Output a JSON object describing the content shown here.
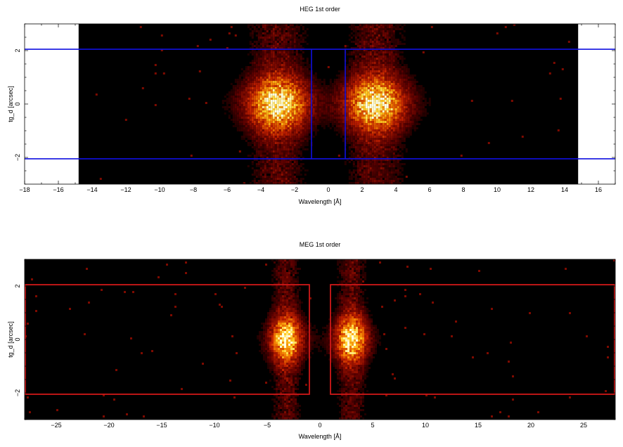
{
  "chart_data": [
    {
      "type": "heatmap",
      "title": "HEG 1st order",
      "xlabel": "Wavelength [Å]",
      "ylabel": "tg_d [arcsec]",
      "xlim": [
        -18,
        17
      ],
      "ylim": [
        -3,
        3
      ],
      "data_extent_x": [
        -14.8,
        14.8
      ],
      "x_major_ticks": [
        -18,
        -16,
        -14,
        -12,
        -10,
        -8,
        -6,
        -4,
        -2,
        0,
        2,
        4,
        6,
        8,
        10,
        12,
        14,
        16
      ],
      "y_major_ticks": [
        -2,
        0,
        2
      ],
      "box_color": "#1010e0",
      "regions": [
        {
          "x": [
            -14.8,
            -1.0
          ],
          "y": [
            -2.05,
            2.05
          ]
        },
        {
          "x": [
            1.0,
            14.8
          ],
          "y": [
            -2.05,
            2.05
          ]
        }
      ],
      "hotspots": [
        {
          "x": -3.0,
          "y": 0.0,
          "sx": 1.1,
          "sy": 0.65
        },
        {
          "x": 2.8,
          "y": 0.0,
          "sx": 1.1,
          "sy": 0.65
        }
      ],
      "horizontal_lines_extend_full_width": true
    },
    {
      "type": "heatmap",
      "title": "MEG 1st order",
      "xlabel": "Wavelength [Å]",
      "ylabel": "tg_d [arcsec]",
      "xlim": [
        -28,
        28
      ],
      "ylim": [
        -3,
        3
      ],
      "data_extent_x": [
        -28,
        28
      ],
      "x_major_ticks": [
        -25,
        -20,
        -15,
        -10,
        -5,
        0,
        5,
        10,
        15,
        20,
        25
      ],
      "y_major_ticks": [
        -2,
        0,
        2
      ],
      "box_color": "#d01818",
      "regions": [
        {
          "x": [
            -28,
            -1.0
          ],
          "y": [
            -2.05,
            2.05
          ]
        },
        {
          "x": [
            1.0,
            28
          ],
          "y": [
            -2.05,
            2.05
          ]
        }
      ],
      "hotspots": [
        {
          "x": -3.2,
          "y": 0.0,
          "sx": 0.9,
          "sy": 0.55
        },
        {
          "x": 3.0,
          "y": 0.0,
          "sx": 0.9,
          "sy": 0.55
        }
      ],
      "horizontal_lines_extend_full_width": false
    }
  ]
}
